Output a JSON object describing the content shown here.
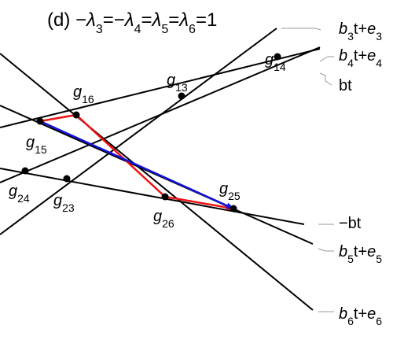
{
  "title": {
    "prefix": "(d)",
    "equation": [
      {
        "t": "−"
      },
      {
        "t": "λ",
        "it": true
      },
      {
        "t": "3",
        "sub": true
      },
      {
        "t": "=−"
      },
      {
        "t": "λ",
        "it": true
      },
      {
        "t": "4",
        "sub": true
      },
      {
        "t": "="
      },
      {
        "t": "λ",
        "it": true
      },
      {
        "t": "5",
        "sub": true
      },
      {
        "t": "="
      },
      {
        "t": "λ",
        "it": true
      },
      {
        "t": "6",
        "sub": true
      },
      {
        "t": "=1"
      }
    ]
  },
  "lines": [
    {
      "id": "line-b3t-e3",
      "color": "#000000"
    },
    {
      "id": "line-b4t-e4",
      "color": "#000000"
    },
    {
      "id": "line-bt",
      "color": "#000000"
    },
    {
      "id": "line-neg-bt",
      "color": "#000000"
    },
    {
      "id": "line-b5t-e5",
      "color": "#000000"
    },
    {
      "id": "line-b6t-e6",
      "color": "#000000"
    }
  ],
  "line_labels": [
    {
      "id": "b3t-e3",
      "parts": [
        {
          "t": "b",
          "it": true
        },
        {
          "t": "3",
          "sub": true
        },
        {
          "t": "t+"
        },
        {
          "t": "e",
          "it": true
        },
        {
          "t": "3",
          "sub": true
        }
      ]
    },
    {
      "id": "b4t-e4",
      "parts": [
        {
          "t": "b",
          "it": true
        },
        {
          "t": "4",
          "sub": true
        },
        {
          "t": "t+"
        },
        {
          "t": "e",
          "it": true
        },
        {
          "t": "4",
          "sub": true
        }
      ]
    },
    {
      "id": "bt",
      "parts": [
        {
          "t": "bt"
        }
      ]
    },
    {
      "id": "neg-bt",
      "parts": [
        {
          "t": "−bt"
        }
      ]
    },
    {
      "id": "b5t-e5",
      "parts": [
        {
          "t": "b",
          "it": true
        },
        {
          "t": "5",
          "sub": true
        },
        {
          "t": "t+"
        },
        {
          "t": "e",
          "it": true
        },
        {
          "t": "5",
          "sub": true
        }
      ]
    },
    {
      "id": "b6t-e6",
      "parts": [
        {
          "t": "b",
          "it": true
        },
        {
          "t": "6",
          "sub": true
        },
        {
          "t": "t+"
        },
        {
          "t": "e",
          "it": true
        },
        {
          "t": "6",
          "sub": true
        }
      ]
    }
  ],
  "points": [
    {
      "id": "g13",
      "base": "g",
      "sub": "13"
    },
    {
      "id": "g14",
      "base": "g",
      "sub": "14"
    },
    {
      "id": "g15",
      "base": "g",
      "sub": "15"
    },
    {
      "id": "g16",
      "base": "g",
      "sub": "16"
    },
    {
      "id": "g23",
      "base": "g",
      "sub": "23"
    },
    {
      "id": "g24",
      "base": "g",
      "sub": "24"
    },
    {
      "id": "g25",
      "base": "g",
      "sub": "25"
    },
    {
      "id": "g26",
      "base": "g",
      "sub": "26"
    }
  ],
  "paths": [
    {
      "id": "red-path",
      "color": "#ee1111",
      "via": [
        "g15",
        "g16",
        "g26",
        "g25"
      ]
    },
    {
      "id": "blue-path",
      "color": "#1111dd",
      "via": [
        "g15",
        "g25"
      ]
    }
  ],
  "colors": {
    "leader": "#999999",
    "ink": "#000000"
  }
}
